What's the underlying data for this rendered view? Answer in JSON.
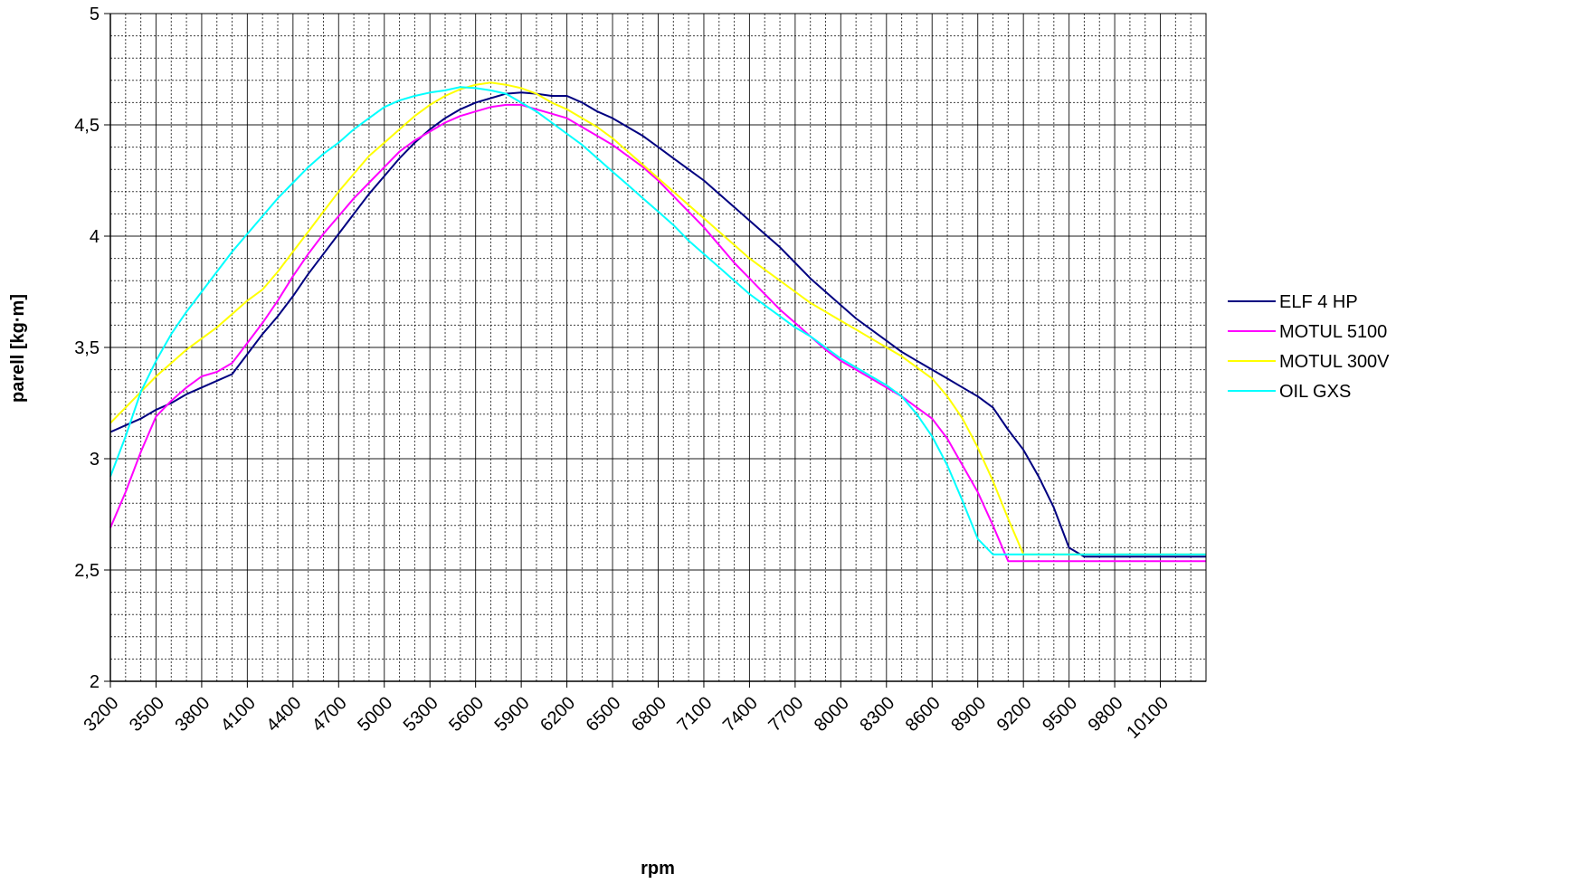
{
  "chart_data": {
    "type": "line",
    "title": "",
    "xlabel": "rpm",
    "ylabel": "parell [kg·m]",
    "xlim": [
      3200,
      10400
    ],
    "ylim": [
      2,
      5
    ],
    "x_ticks": [
      "3200",
      "3500",
      "3800",
      "4100",
      "4400",
      "4700",
      "5000",
      "5300",
      "5600",
      "5900",
      "6200",
      "6500",
      "6800",
      "7100",
      "7400",
      "7700",
      "8000",
      "8300",
      "8600",
      "8900",
      "9200",
      "9500",
      "9800",
      "10100"
    ],
    "y_ticks": [
      "2",
      "2,5",
      "3",
      "3,5",
      "4",
      "4,5",
      "5"
    ],
    "grid": true,
    "legend_position": "right",
    "x": [
      3200,
      3300,
      3400,
      3500,
      3600,
      3700,
      3800,
      3900,
      4000,
      4100,
      4200,
      4300,
      4400,
      4500,
      4600,
      4700,
      4800,
      4900,
      5000,
      5100,
      5200,
      5300,
      5400,
      5500,
      5600,
      5700,
      5800,
      5900,
      6000,
      6100,
      6200,
      6300,
      6400,
      6500,
      6600,
      6700,
      6800,
      6900,
      7000,
      7100,
      7200,
      7300,
      7400,
      7500,
      7600,
      7700,
      7800,
      7900,
      8000,
      8100,
      8200,
      8300,
      8400,
      8500,
      8600,
      8700,
      8800,
      8900,
      9000,
      9100,
      9200,
      9300,
      9400,
      9500,
      9600,
      9700,
      9800,
      9900,
      10000,
      10100,
      10200,
      10300,
      10400
    ],
    "series": [
      {
        "name": "ELF 4 HP",
        "color": "#000080",
        "values": [
          3.12,
          3.15,
          3.18,
          3.22,
          3.25,
          3.29,
          3.32,
          3.35,
          3.38,
          3.47,
          3.56,
          3.64,
          3.73,
          3.83,
          3.92,
          4.01,
          4.1,
          4.19,
          4.27,
          4.35,
          4.42,
          4.48,
          4.53,
          4.57,
          4.6,
          4.62,
          4.64,
          4.645,
          4.64,
          4.63,
          4.63,
          4.6,
          4.56,
          4.53,
          4.49,
          4.45,
          4.4,
          4.35,
          4.3,
          4.25,
          4.19,
          4.13,
          4.07,
          4.01,
          3.95,
          3.88,
          3.81,
          3.75,
          3.69,
          3.63,
          3.58,
          3.53,
          3.48,
          3.44,
          3.4,
          3.36,
          3.32,
          3.28,
          3.23,
          3.13,
          3.04,
          2.92,
          2.78,
          2.6,
          2.56,
          2.56,
          2.56,
          2.56,
          2.56,
          2.56,
          2.56,
          2.56,
          2.56
        ]
      },
      {
        "name": "MOTUL 5100",
        "color": "#ff00ff",
        "values": [
          2.69,
          2.85,
          3.03,
          3.19,
          3.26,
          3.32,
          3.37,
          3.39,
          3.43,
          3.52,
          3.61,
          3.71,
          3.82,
          3.92,
          4.01,
          4.09,
          4.17,
          4.24,
          4.31,
          4.38,
          4.43,
          4.47,
          4.51,
          4.54,
          4.56,
          4.58,
          4.59,
          4.59,
          4.57,
          4.55,
          4.53,
          4.49,
          4.45,
          4.41,
          4.36,
          4.31,
          4.25,
          4.18,
          4.11,
          4.04,
          3.96,
          3.88,
          3.81,
          3.74,
          3.67,
          3.61,
          3.55,
          3.49,
          3.44,
          3.4,
          3.36,
          3.32,
          3.28,
          3.23,
          3.18,
          3.09,
          2.97,
          2.85,
          2.7,
          2.54,
          2.54,
          2.54,
          2.54,
          2.54,
          2.54,
          2.54,
          2.54,
          2.54,
          2.54,
          2.54,
          2.54,
          2.54,
          2.54
        ]
      },
      {
        "name": "MOTUL 300V",
        "color": "#ffff00",
        "values": [
          3.16,
          3.23,
          3.3,
          3.37,
          3.43,
          3.49,
          3.54,
          3.59,
          3.65,
          3.71,
          3.76,
          3.84,
          3.93,
          4.02,
          4.11,
          4.2,
          4.28,
          4.36,
          4.42,
          4.48,
          4.54,
          4.59,
          4.63,
          4.66,
          4.68,
          4.69,
          4.68,
          4.665,
          4.64,
          4.6,
          4.57,
          4.53,
          4.49,
          4.44,
          4.38,
          4.32,
          4.26,
          4.2,
          4.14,
          4.08,
          4.02,
          3.96,
          3.9,
          3.85,
          3.8,
          3.75,
          3.7,
          3.66,
          3.62,
          3.58,
          3.54,
          3.5,
          3.46,
          3.41,
          3.36,
          3.28,
          3.18,
          3.05,
          2.9,
          2.73,
          2.57,
          2.57,
          2.57,
          2.57,
          2.57,
          2.57,
          2.57,
          2.57,
          2.57,
          2.57,
          2.57,
          2.57,
          2.57
        ]
      },
      {
        "name": "OIL GXS",
        "color": "#00ffff",
        "values": [
          2.92,
          3.1,
          3.3,
          3.44,
          3.56,
          3.66,
          3.75,
          3.84,
          3.93,
          4.01,
          4.09,
          4.17,
          4.24,
          4.31,
          4.37,
          4.42,
          4.48,
          4.53,
          4.58,
          4.61,
          4.63,
          4.645,
          4.655,
          4.67,
          4.665,
          4.655,
          4.64,
          4.6,
          4.56,
          4.51,
          4.46,
          4.41,
          4.35,
          4.29,
          4.23,
          4.17,
          4.11,
          4.05,
          3.98,
          3.92,
          3.86,
          3.8,
          3.74,
          3.69,
          3.64,
          3.59,
          3.55,
          3.5,
          3.45,
          3.41,
          3.37,
          3.33,
          3.28,
          3.2,
          3.1,
          2.97,
          2.81,
          2.64,
          2.57,
          2.57,
          2.57,
          2.57,
          2.57,
          2.57,
          2.57,
          2.57,
          2.57,
          2.57,
          2.57,
          2.57,
          2.57,
          2.57,
          2.57
        ]
      }
    ]
  }
}
